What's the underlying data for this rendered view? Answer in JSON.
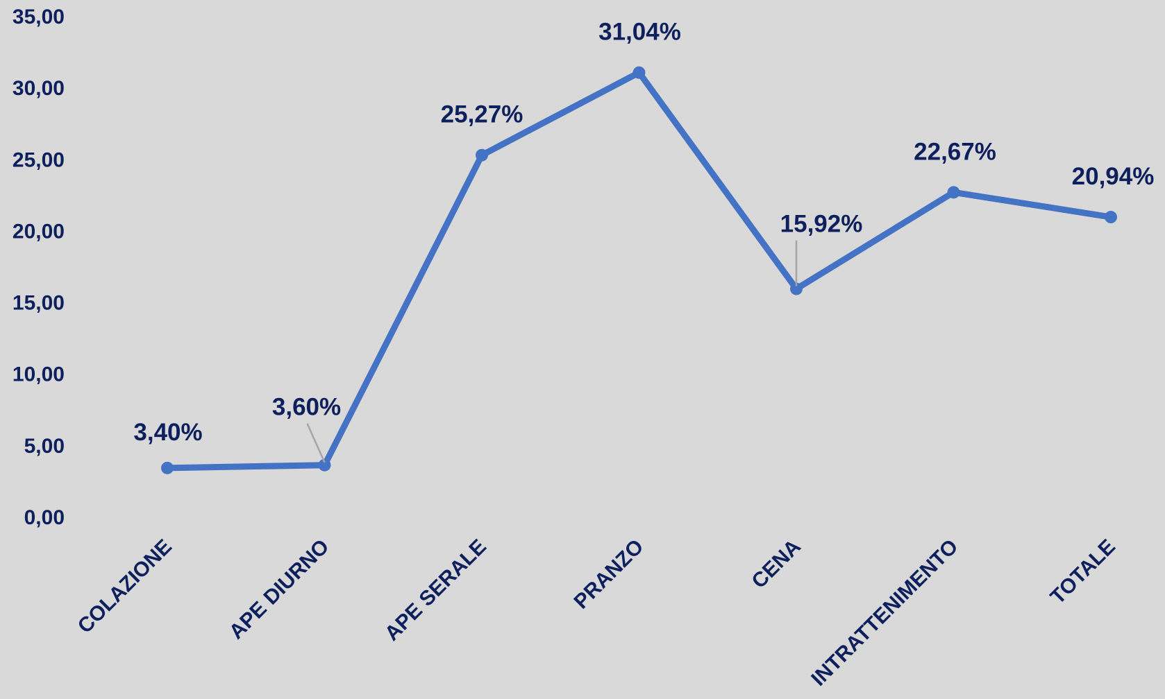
{
  "chart_data": {
    "type": "line",
    "categories": [
      "COLAZIONE",
      "APE DIURNO",
      "APE SERALE",
      "PRANZO",
      "CENA",
      "INTRATTENIMENTO",
      "TOTALE"
    ],
    "series": [
      {
        "values": [
          3.4,
          3.6,
          25.27,
          31.04,
          15.92,
          22.67,
          20.94
        ],
        "data_labels": [
          "3,40%",
          "3,60%",
          "25,27%",
          "31,04%",
          "15,92%",
          "22,67%",
          "20,94%"
        ],
        "color": "#4472c4"
      }
    ],
    "ylim": [
      0,
      35
    ],
    "yticks": [
      0,
      5,
      10,
      15,
      20,
      25,
      30,
      35
    ],
    "ytick_labels": [
      "0,00",
      "5,00",
      "10,00",
      "15,00",
      "20,00",
      "25,00",
      "30,00",
      "35,00"
    ],
    "grid": false,
    "title": "",
    "xlabel": "",
    "ylabel": ""
  },
  "colors": {
    "background": "#d9d9d9",
    "text": "#0d1f5c",
    "line": "#4472c4",
    "leader": "#a6a6a6"
  }
}
